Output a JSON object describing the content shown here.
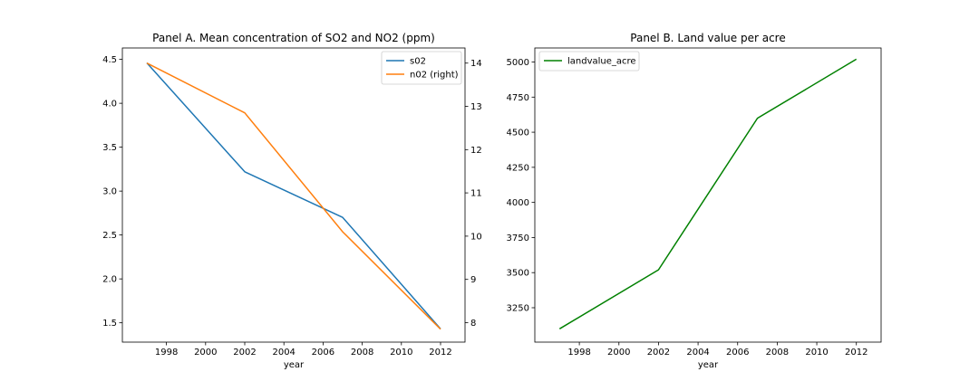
{
  "chart_data": [
    {
      "type": "line",
      "title": "Panel A. Mean concentration of SO2 and NO2 (ppm)",
      "xlabel": "year",
      "ylabel": "",
      "x": [
        1997,
        2002,
        2007,
        2012
      ],
      "xlim": [
        1995.75,
        2013.25
      ],
      "xticks": [
        1998,
        2000,
        2002,
        2004,
        2006,
        2008,
        2010,
        2012
      ],
      "ylim": [
        1.28,
        4.63
      ],
      "yticks": [
        1.5,
        2.0,
        2.5,
        3.0,
        3.5,
        4.0,
        4.5
      ],
      "ylim_right": [
        7.55,
        14.35
      ],
      "yticks_right": [
        8,
        9,
        10,
        11,
        12,
        13,
        14
      ],
      "legend": "top-right",
      "grid": false,
      "series": [
        {
          "name": "s02",
          "axis": "left",
          "color": "#1f77b4",
          "values": [
            4.46,
            3.22,
            2.7,
            1.43
          ]
        },
        {
          "name": "n02 (right)",
          "axis": "right",
          "color": "#ff7f0e",
          "values": [
            14.0,
            12.85,
            10.1,
            7.85
          ]
        }
      ]
    },
    {
      "type": "line",
      "title": "Panel B. Land value per acre",
      "xlabel": "year",
      "ylabel": "",
      "x": [
        1997,
        2002,
        2007,
        2012
      ],
      "xlim": [
        1995.75,
        2013.25
      ],
      "xticks": [
        1998,
        2000,
        2002,
        2004,
        2006,
        2008,
        2010,
        2012
      ],
      "ylim": [
        3005,
        5100
      ],
      "yticks": [
        3250,
        3500,
        3750,
        4000,
        4250,
        4500,
        4750,
        5000
      ],
      "legend": "top-left",
      "grid": false,
      "series": [
        {
          "name": "landvalue_acre",
          "axis": "left",
          "color": "#008000",
          "values": [
            3100,
            3520,
            4600,
            5020
          ]
        }
      ]
    }
  ]
}
